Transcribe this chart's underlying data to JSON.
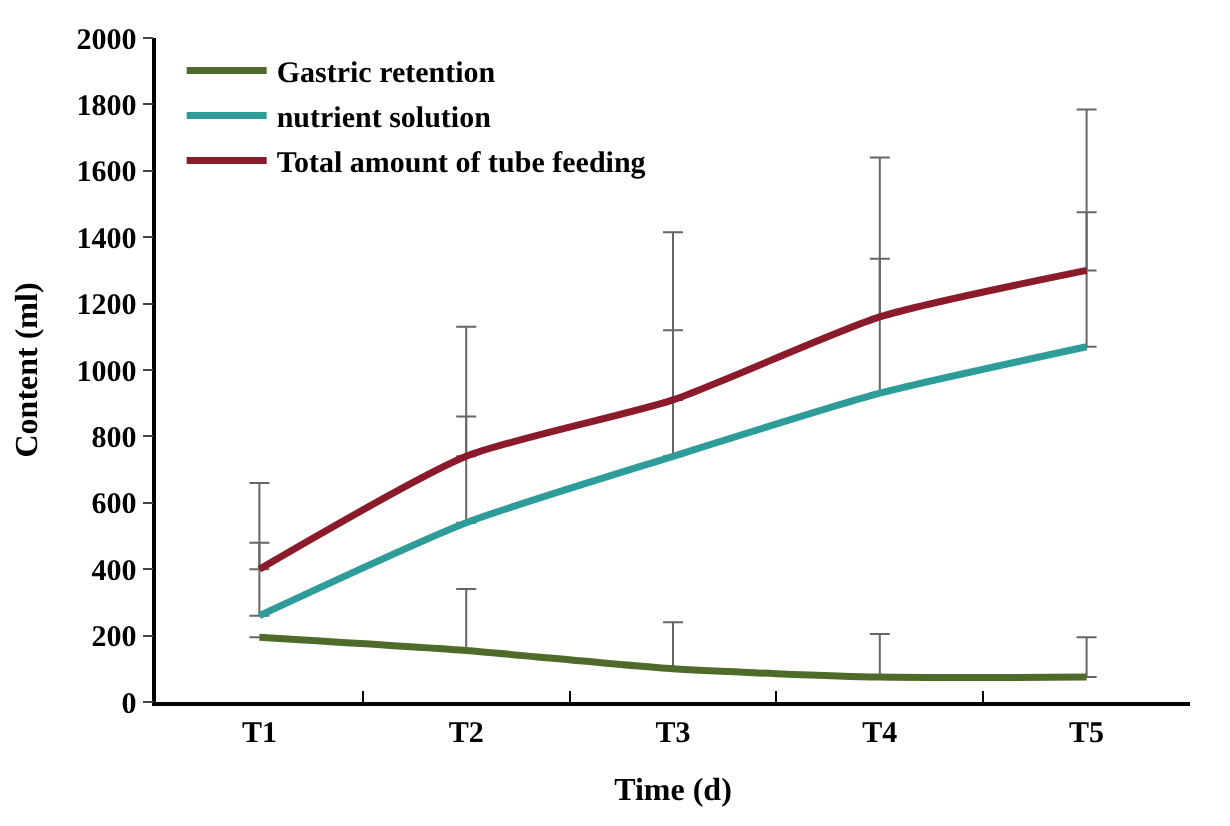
{
  "chart_data": {
    "type": "line",
    "xlabel": "Time (d)",
    "ylabel": "Content (ml)",
    "categories": [
      "T1",
      "T2",
      "T3",
      "T4",
      "T5"
    ],
    "series": [
      {
        "name": "Gastric retention",
        "color": "#4e6b2a",
        "values": [
          195,
          155,
          100,
          75,
          75
        ],
        "errors": [
          null,
          [
            155,
            340
          ],
          [
            100,
            240
          ],
          [
            75,
            205
          ],
          [
            75,
            195
          ]
        ]
      },
      {
        "name": "nutrient solution",
        "color": "#2e9c98",
        "values": [
          260,
          540,
          740,
          930,
          1070
        ],
        "errors": [
          [
            260,
            480
          ],
          [
            540,
            860
          ],
          [
            740,
            1120
          ],
          [
            930,
            1335
          ],
          [
            1070,
            1475
          ]
        ]
      },
      {
        "name": "Total amount of tube feeding",
        "color": "#8b1a2b",
        "values": [
          400,
          740,
          910,
          1160,
          1300
        ],
        "errors": [
          [
            400,
            660
          ],
          [
            740,
            1130
          ],
          [
            910,
            1415
          ],
          [
            1160,
            1640
          ],
          [
            1300,
            1785
          ]
        ]
      }
    ],
    "ylim": [
      0,
      2000
    ],
    "yticks": [
      0,
      200,
      400,
      600,
      800,
      1000,
      1200,
      1400,
      1600,
      1800,
      2000
    ],
    "legend": "top left",
    "marker": "none",
    "line_style": "solid"
  }
}
